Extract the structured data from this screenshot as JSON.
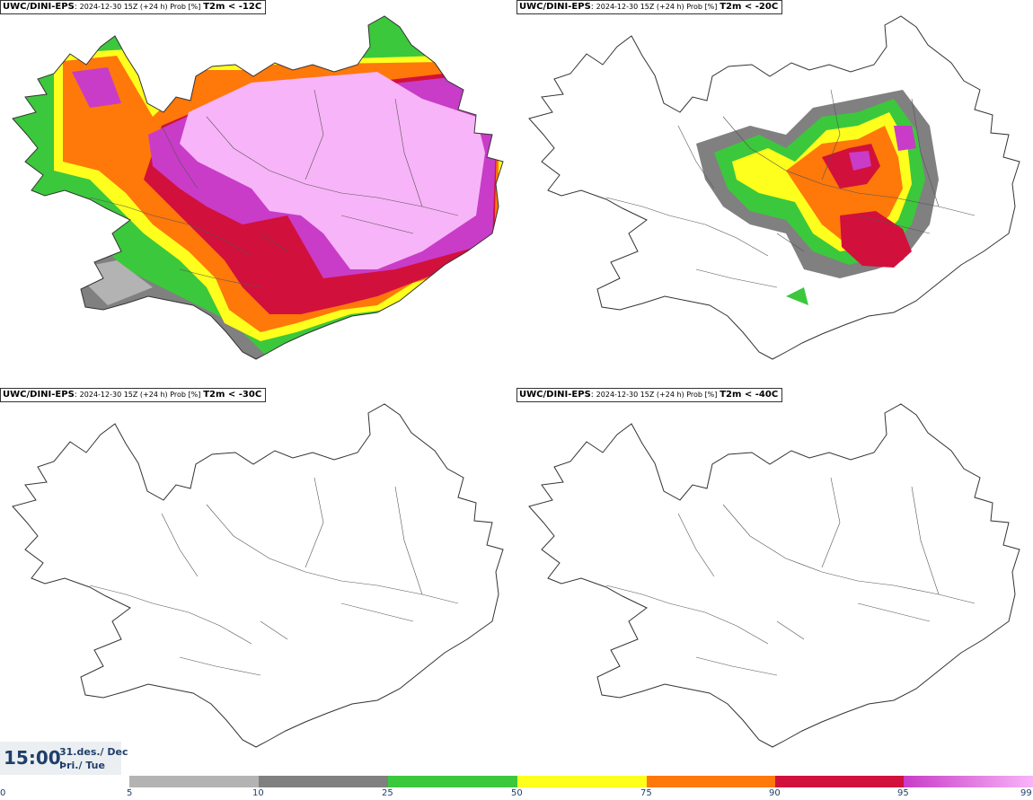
{
  "panels": [
    {
      "model": "UWC/DINI-EPS",
      "info": "2024-12-30 15Z (+24 h) Prob [%]",
      "variable": "T2m < -12C"
    },
    {
      "model": "UWC/DINI-EPS",
      "info": "2024-12-30 15Z (+24 h) Prob [%]",
      "variable": "T2m < -20C"
    },
    {
      "model": "UWC/DINI-EPS",
      "info": "2024-12-30 15Z (+24 h) Prob [%]",
      "variable": "T2m < -30C"
    },
    {
      "model": "UWC/DINI-EPS",
      "info": "2024-12-30 15Z (+24 h) Prob [%]",
      "variable": "T2m < -40C"
    }
  ],
  "time": {
    "clock": "15:00",
    "date": "31.des./ Dec",
    "day": "Þri./ Tue"
  },
  "legend": {
    "ticks": [
      "0",
      "5",
      "10",
      "25",
      "50",
      "75",
      "90",
      "95",
      "99"
    ],
    "colors": {
      "5-10": "#b3b3b3",
      "10-25": "#808080",
      "25-50": "#3cc83c",
      "50-75": "#ffff1e",
      "75-90": "#ff780a",
      "90-95": "#d2103c",
      "95-99": "#c83cc8",
      "99+": "#f8b4f8"
    }
  }
}
